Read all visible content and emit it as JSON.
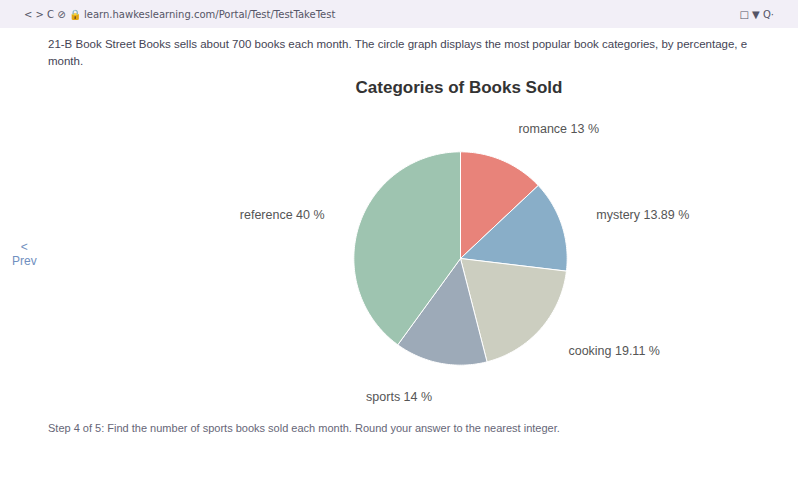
{
  "chart_data": {
    "type": "pie",
    "title": "Categories of Books Sold",
    "categories": [
      "romance",
      "mystery",
      "cooking",
      "sports",
      "reference"
    ],
    "values": [
      13.0,
      13.89,
      19.11,
      14.0,
      40.0
    ],
    "value_labels": [
      "romance 13 %",
      "mystery 13.89 %",
      "cooking 19.11 %",
      "sports 14 %",
      "reference 40 %"
    ],
    "colors": [
      "#e8837a",
      "#89aec8",
      "#cccec0",
      "#9daab8",
      "#9ec4b0"
    ],
    "data_labels": true,
    "annotations": [
      "< >  C  ⊘  🔒  learn.hawkeslearning.com/Portal/Test/TestTakeTest",
      "□  ▼  Q·",
      "21-B Book Street Books sells about 700 books each month. The circle graph displays the most popular book categories, by percentage, e",
      "month.",
      "<",
      "Prev",
      "Step 4 of 5: Find the number of sports books sold each month. Round your answer to the nearest integer."
    ]
  }
}
